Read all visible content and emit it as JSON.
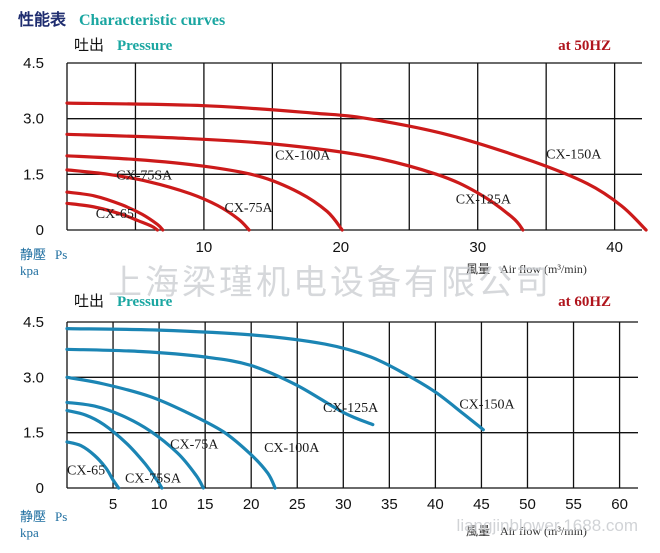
{
  "header": {
    "cn_title": "性能表",
    "en_title": "Characteristic curves"
  },
  "colors": {
    "title_navy": "#1e2c6f",
    "teal_label": "#1aa6a1",
    "header_red": "#b0141c",
    "curve_red": "#cc1a1a",
    "curve_blue": "#1b85b4",
    "grid": "#111111"
  },
  "watermarks": {
    "company": "上海梁瑾机电设备有限公司",
    "site": "liangjinblower.1688.com"
  },
  "chart_data": [
    {
      "type": "line",
      "pressure_cn": "吐出",
      "pressure_en": "Pressure",
      "frequency": "at  50HZ",
      "ylabel_cn": "静壓",
      "ylabel_ps": "Ps",
      "yunit": "kpa",
      "xlabel_cn": "風量",
      "xlabel_en": "Air flow (m³/min)",
      "xlim": [
        0,
        42
      ],
      "ylim": [
        0,
        4.5
      ],
      "xgrid": [
        0,
        5,
        10,
        15,
        20,
        25,
        30,
        35,
        40
      ],
      "yticks": [
        0,
        1.5,
        3.0,
        4.5
      ],
      "ytick_labels": [
        "0",
        "1.5",
        "3.0",
        "4.5"
      ],
      "xticks": [
        10,
        20,
        30,
        40
      ],
      "series": [
        {
          "name": "CX-65",
          "x": [
            0,
            2,
            4,
            5.2,
            6.2,
            6.6
          ],
          "y": [
            0.72,
            0.62,
            0.42,
            0.25,
            0.1,
            0
          ]
        },
        {
          "name": "CX-75SA",
          "x": [
            0,
            2,
            4,
            5.5,
            6.6,
            7.0
          ],
          "y": [
            1.02,
            0.92,
            0.68,
            0.42,
            0.15,
            0
          ]
        },
        {
          "name": "CX-75A",
          "x": [
            0,
            3,
            6,
            9,
            11,
            12.5,
            13.3
          ],
          "y": [
            1.62,
            1.5,
            1.3,
            0.98,
            0.66,
            0.3,
            0
          ]
        },
        {
          "name": "CX-100A",
          "x": [
            0,
            5,
            10,
            14,
            17,
            19,
            20.1
          ],
          "y": [
            2.0,
            1.9,
            1.72,
            1.45,
            1.0,
            0.5,
            0
          ]
        },
        {
          "name": "CX-125A",
          "x": [
            0,
            8,
            15,
            22,
            27,
            30,
            32.5,
            33.3
          ],
          "y": [
            2.58,
            2.48,
            2.32,
            1.98,
            1.5,
            1.0,
            0.35,
            0
          ]
        },
        {
          "name": "CX-150A",
          "x": [
            0,
            10,
            18,
            22,
            28,
            34,
            38,
            40.5,
            42.3
          ],
          "y": [
            3.42,
            3.35,
            3.15,
            3.0,
            2.55,
            1.85,
            1.25,
            0.65,
            0
          ]
        }
      ],
      "labels": [
        {
          "series": "CX-65",
          "text": "CX-65",
          "x": 2.1,
          "y": 0.32,
          "size": 14
        },
        {
          "series": "CX-75SA",
          "text": "CX-75SA",
          "x": 3.6,
          "y": 1.36,
          "size": 14
        },
        {
          "series": "CX-75A",
          "text": "CX-75A",
          "x": 11.5,
          "y": 0.48,
          "size": 14
        },
        {
          "series": "CX-100A",
          "text": "CX-100A",
          "x": 15.2,
          "y": 1.9,
          "size": 14
        },
        {
          "series": "CX-125A",
          "text": "CX-125A",
          "x": 28.4,
          "y": 0.72,
          "size": 14
        },
        {
          "series": "CX-150A",
          "text": "CX-150A",
          "x": 35.0,
          "y": 1.92,
          "size": 14
        }
      ]
    },
    {
      "type": "line",
      "pressure_cn": "吐出",
      "pressure_en": "Pressure",
      "frequency": "at  60HZ",
      "ylabel_cn": "静壓",
      "ylabel_ps": "Ps",
      "yunit": "kpa",
      "xlabel_cn": "風量",
      "xlabel_en": "Air flow (m³/min)",
      "xlim": [
        0,
        62
      ],
      "ylim": [
        0,
        4.5
      ],
      "xgrid": [
        0,
        5,
        10,
        15,
        20,
        25,
        30,
        35,
        40,
        45,
        50,
        55,
        60
      ],
      "yticks": [
        0,
        1.5,
        3.0,
        4.5
      ],
      "ytick_labels": [
        "0",
        "1.5",
        "3.0",
        "4.5"
      ],
      "xticks": [
        5,
        10,
        15,
        20,
        25,
        30,
        35,
        40,
        45,
        50,
        55,
        60
      ],
      "series": [
        {
          "name": "CX-65",
          "x": [
            0,
            1.5,
            3,
            4.2,
            5.0,
            5.6
          ],
          "y": [
            1.25,
            1.15,
            0.88,
            0.55,
            0.22,
            0
          ]
        },
        {
          "name": "CX-75SA",
          "x": [
            0,
            2,
            4,
            6.5,
            8.5,
            9.8,
            10.3
          ],
          "y": [
            2.1,
            1.98,
            1.72,
            1.2,
            0.65,
            0.2,
            0
          ]
        },
        {
          "name": "CX-75A",
          "x": [
            0,
            3,
            6,
            9,
            12,
            14,
            14.8
          ],
          "y": [
            2.32,
            2.22,
            1.96,
            1.55,
            0.95,
            0.35,
            0
          ]
        },
        {
          "name": "CX-100A",
          "x": [
            0,
            4,
            9,
            13,
            17,
            20,
            21.8,
            22.6
          ],
          "y": [
            3.0,
            2.82,
            2.48,
            2.05,
            1.52,
            0.9,
            0.4,
            0
          ]
        },
        {
          "name": "CX-125A",
          "x": [
            0,
            8,
            15,
            20,
            25,
            30,
            33.2
          ],
          "y": [
            3.76,
            3.7,
            3.55,
            3.32,
            2.78,
            2.05,
            1.72
          ]
        },
        {
          "name": "CX-150A",
          "x": [
            0,
            10,
            20,
            28,
            33,
            37,
            40,
            43,
            45.2
          ],
          "y": [
            4.32,
            4.28,
            4.15,
            3.9,
            3.55,
            3.05,
            2.6,
            2.02,
            1.58
          ]
        }
      ],
      "labels": [
        {
          "series": "CX-65",
          "text": "CX-65",
          "x": 0.0,
          "y": 0.36,
          "size": 14
        },
        {
          "series": "CX-75SA",
          "text": "CX-75SA",
          "x": 6.3,
          "y": 0.15,
          "size": 14
        },
        {
          "series": "CX-75A",
          "text": "CX-75A",
          "x": 11.2,
          "y": 1.07,
          "size": 14
        },
        {
          "series": "CX-100A",
          "text": "CX-100A",
          "x": 21.4,
          "y": 0.97,
          "size": 14
        },
        {
          "series": "CX-125A",
          "text": "CX-125A",
          "x": 27.8,
          "y": 2.06,
          "size": 14
        },
        {
          "series": "CX-150A",
          "text": "CX-150A",
          "x": 42.6,
          "y": 2.16,
          "size": 14
        }
      ]
    }
  ]
}
